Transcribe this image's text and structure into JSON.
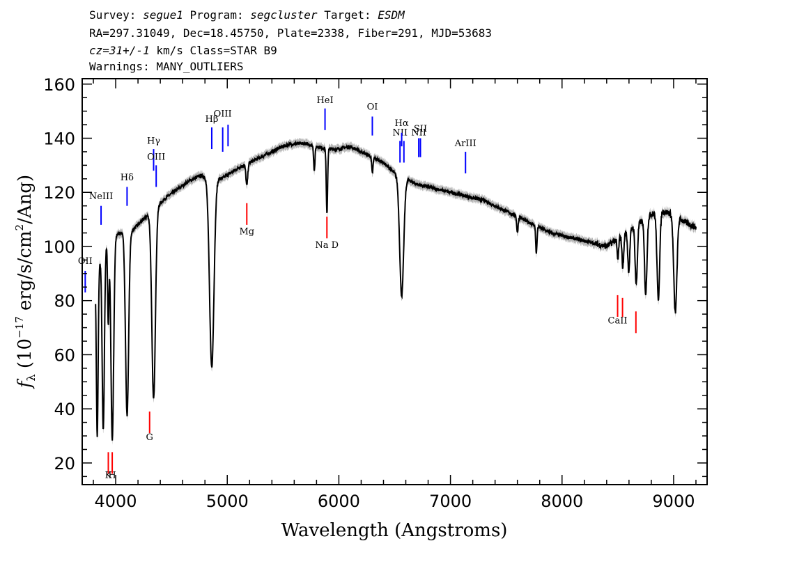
{
  "header": {
    "survey_label": "Survey:",
    "survey": "segue1",
    "program_label": "Program:",
    "program": "segcluster",
    "target_label": "Target:",
    "target": "ESDM",
    "line2": "RA=297.31049, Dec=18.45750, Plate=2338, Fiber=291, MJD=53683",
    "cz": "cz=31+/-1",
    "cz_rest": " km/s Class=STAR B9",
    "line4": "Warnings: MANY_OUTLIERS"
  },
  "chart_data": {
    "type": "line",
    "xlabel": "Wavelength (Angstroms)",
    "ylabel": "f_λ (10^-17 erg/s/cm^2/Ang)",
    "xlim": [
      3700,
      9300
    ],
    "ylim": [
      12,
      162
    ],
    "x_ticks": [
      4000,
      5000,
      6000,
      7000,
      8000,
      9000
    ],
    "y_ticks": [
      20,
      40,
      60,
      80,
      100,
      120,
      140,
      160
    ],
    "colors": {
      "flux": "#000000",
      "error_band": "#b8b8b8",
      "emission": "#0000ff",
      "absorption": "#ff0000"
    },
    "series": [
      {
        "values_note": "continuum",
        "points": [
          [
            3820,
            90
          ],
          [
            3870,
            96
          ],
          [
            3920,
            101
          ],
          [
            3980,
            104
          ],
          [
            4050,
            105
          ],
          [
            4150,
            106
          ],
          [
            4250,
            110
          ],
          [
            4350,
            114
          ],
          [
            4450,
            118
          ],
          [
            4550,
            121
          ],
          [
            4650,
            124
          ],
          [
            4750,
            126
          ],
          [
            4800,
            126
          ],
          [
            4950,
            125
          ],
          [
            5100,
            129
          ],
          [
            5200,
            131
          ],
          [
            5300,
            133
          ],
          [
            5400,
            135
          ],
          [
            5500,
            137
          ],
          [
            5600,
            138
          ],
          [
            5700,
            138
          ],
          [
            5800,
            137
          ],
          [
            5900,
            136
          ],
          [
            6000,
            136
          ],
          [
            6100,
            137
          ],
          [
            6200,
            135
          ],
          [
            6300,
            133
          ],
          [
            6400,
            131
          ],
          [
            6500,
            127
          ],
          [
            6600,
            125
          ],
          [
            6700,
            123
          ],
          [
            6800,
            122
          ],
          [
            6900,
            121
          ],
          [
            7000,
            120
          ],
          [
            7100,
            119
          ],
          [
            7200,
            118
          ],
          [
            7300,
            117
          ],
          [
            7400,
            115
          ],
          [
            7500,
            113
          ],
          [
            7600,
            111
          ],
          [
            7700,
            109
          ],
          [
            7800,
            107
          ],
          [
            7900,
            105
          ],
          [
            8000,
            104
          ],
          [
            8100,
            103
          ],
          [
            8200,
            102
          ],
          [
            8300,
            101
          ],
          [
            8400,
            100
          ],
          [
            8500,
            103
          ],
          [
            8600,
            106
          ],
          [
            8700,
            109
          ],
          [
            8800,
            112
          ],
          [
            8900,
            113
          ],
          [
            9000,
            112
          ],
          [
            9100,
            109
          ],
          [
            9200,
            107
          ]
        ]
      }
    ],
    "absorption_dips": [
      {
        "x": 3835,
        "depth": 62,
        "width": 8
      },
      {
        "x": 3889,
        "depth": 66,
        "width": 10
      },
      {
        "x": 3934,
        "depth": 30,
        "width": 6
      },
      {
        "x": 3970,
        "depth": 75,
        "width": 12
      },
      {
        "x": 4102,
        "depth": 68,
        "width": 14
      },
      {
        "x": 4340,
        "depth": 70,
        "width": 16
      },
      {
        "x": 4861,
        "depth": 70,
        "width": 20
      },
      {
        "x": 5175,
        "depth": 8,
        "width": 8
      },
      {
        "x": 5780,
        "depth": 9,
        "width": 6
      },
      {
        "x": 5893,
        "depth": 24,
        "width": 6
      },
      {
        "x": 6300,
        "depth": 6,
        "width": 6
      },
      {
        "x": 6563,
        "depth": 44,
        "width": 18
      },
      {
        "x": 7600,
        "depth": 6,
        "width": 6
      },
      {
        "x": 7770,
        "depth": 10,
        "width": 6
      },
      {
        "x": 8500,
        "depth": 8,
        "width": 7
      },
      {
        "x": 8545,
        "depth": 12,
        "width": 8
      },
      {
        "x": 8598,
        "depth": 15,
        "width": 9
      },
      {
        "x": 8665,
        "depth": 22,
        "width": 10
      },
      {
        "x": 8750,
        "depth": 28,
        "width": 11
      },
      {
        "x": 8863,
        "depth": 32,
        "width": 12
      },
      {
        "x": 9015,
        "depth": 36,
        "width": 14
      }
    ],
    "emission_lines": [
      {
        "label": "OII",
        "x": 3727,
        "y0": 83,
        "y1": 91,
        "label_y": 93.5
      },
      {
        "label": "NeIII",
        "x": 3869,
        "y0": 108,
        "y1": 115,
        "label_y": 117.5
      },
      {
        "label": "Hδ",
        "x": 4102,
        "y0": 115,
        "y1": 122,
        "label_y": 124.5
      },
      {
        "label": "Hγ",
        "x": 4340,
        "y0": 128,
        "y1": 136,
        "label_y": 138
      },
      {
        "label": "OIII",
        "x": 4363,
        "y0": 122,
        "y1": 130,
        "label_y": 132
      },
      {
        "label": "Hβ",
        "x": 4861,
        "y0": 136,
        "y1": 144,
        "label_y": 146
      },
      {
        "label": "OIII",
        "x": 4959,
        "y0": 135,
        "y1": 144,
        "label_y": 148
      },
      {
        "label": "",
        "x": 5007,
        "y0": 137,
        "y1": 145,
        "label_y": 0
      },
      {
        "label": "HeI",
        "x": 5876,
        "y0": 143,
        "y1": 151,
        "label_y": 153
      },
      {
        "label": "OI",
        "x": 6300,
        "y0": 141,
        "y1": 148,
        "label_y": 150.5
      },
      {
        "label": "NII",
        "x": 6548,
        "y0": 131,
        "y1": 139,
        "label_y": 141
      },
      {
        "label": "Hα",
        "x": 6563,
        "y0": 137,
        "y1": 142,
        "label_y": 144.5
      },
      {
        "label": "",
        "x": 6583,
        "y0": 131,
        "y1": 139,
        "label_y": 0
      },
      {
        "label": "NII",
        "x": 6716,
        "y0": 133,
        "y1": 140,
        "label_y": 141
      },
      {
        "label": "SII",
        "x": 6731,
        "y0": 133,
        "y1": 140,
        "label_y": 142.5
      },
      {
        "label": "ArIII",
        "x": 7135,
        "y0": 127,
        "y1": 135,
        "label_y": 137
      }
    ],
    "absorption_lines": [
      {
        "label": "K",
        "x": 3934,
        "y0": 16,
        "y1": 24,
        "label_y": 14.5
      },
      {
        "label": "H",
        "x": 3969,
        "y0": 16,
        "y1": 24,
        "label_y": 14.5
      },
      {
        "label": "G",
        "x": 4304,
        "y0": 31,
        "y1": 39,
        "label_y": 28.5
      },
      {
        "label": "Mg",
        "x": 5175,
        "y0": 108,
        "y1": 116,
        "label_y": 104.5
      },
      {
        "label": "Na D",
        "x": 5893,
        "y0": 103,
        "y1": 111,
        "label_y": 99.5
      },
      {
        "label": "CaII",
        "x": 8498,
        "y0": 74,
        "y1": 82,
        "label_y": 71.5
      },
      {
        "label": "",
        "x": 8542,
        "y0": 74,
        "y1": 81,
        "label_y": 0
      },
      {
        "label": "",
        "x": 8662,
        "y0": 68,
        "y1": 76,
        "label_y": 0
      }
    ]
  }
}
